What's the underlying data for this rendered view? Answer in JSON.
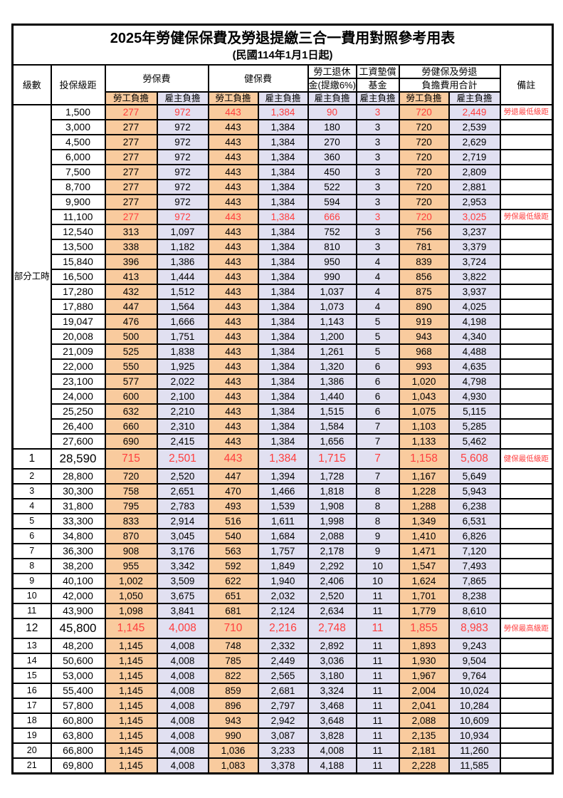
{
  "title": "2025年勞健保保費及勞退提繳三合一費用對照參考用表",
  "subtitle": "(民國114年1月1日起)",
  "colors": {
    "employee_bg": "#F9CB9E",
    "employer_bg": "#E1E0F1",
    "highlight_text": "#FF3D3D",
    "border": "#000000"
  },
  "table": {
    "header": {
      "level": "級數",
      "salary": "投保級距",
      "labor": "勞保費",
      "health": "健保費",
      "pension_line1": "勞工退休",
      "pension_line2": "金(提繳6%)",
      "fund_line1": "工資墊償",
      "fund_line2": "基金",
      "total_line1": "勞健保及勞退",
      "total_line2": "負擔費用合計",
      "remark": "備註",
      "employee": "勞工負擔",
      "employer": "雇主負擔"
    },
    "part_time_label": "部分工時",
    "part_time_rowspan": 23,
    "columns_order": [
      "labor_emp",
      "labor_er",
      "health_emp",
      "health_er",
      "pension_er",
      "fund_er",
      "total_emp",
      "total_er"
    ],
    "rows": [
      {
        "level": "",
        "salary": "1,500",
        "labor_emp": "277",
        "labor_er": "972",
        "health_emp": "443",
        "health_er": "1,384",
        "pension_er": "90",
        "fund_er": "3",
        "total_emp": "720",
        "total_er": "2,449",
        "remark": "勞退最低級距",
        "highlight": true,
        "large": false
      },
      {
        "level": "",
        "salary": "3,000",
        "labor_emp": "277",
        "labor_er": "972",
        "health_emp": "443",
        "health_er": "1,384",
        "pension_er": "180",
        "fund_er": "3",
        "total_emp": "720",
        "total_er": "2,539",
        "remark": "",
        "highlight": false,
        "large": false
      },
      {
        "level": "",
        "salary": "4,500",
        "labor_emp": "277",
        "labor_er": "972",
        "health_emp": "443",
        "health_er": "1,384",
        "pension_er": "270",
        "fund_er": "3",
        "total_emp": "720",
        "total_er": "2,629",
        "remark": "",
        "highlight": false,
        "large": false
      },
      {
        "level": "",
        "salary": "6,000",
        "labor_emp": "277",
        "labor_er": "972",
        "health_emp": "443",
        "health_er": "1,384",
        "pension_er": "360",
        "fund_er": "3",
        "total_emp": "720",
        "total_er": "2,719",
        "remark": "",
        "highlight": false,
        "large": false
      },
      {
        "level": "",
        "salary": "7,500",
        "labor_emp": "277",
        "labor_er": "972",
        "health_emp": "443",
        "health_er": "1,384",
        "pension_er": "450",
        "fund_er": "3",
        "total_emp": "720",
        "total_er": "2,809",
        "remark": "",
        "highlight": false,
        "large": false
      },
      {
        "level": "",
        "salary": "8,700",
        "labor_emp": "277",
        "labor_er": "972",
        "health_emp": "443",
        "health_er": "1,384",
        "pension_er": "522",
        "fund_er": "3",
        "total_emp": "720",
        "total_er": "2,881",
        "remark": "",
        "highlight": false,
        "large": false
      },
      {
        "level": "",
        "salary": "9,900",
        "labor_emp": "277",
        "labor_er": "972",
        "health_emp": "443",
        "health_er": "1,384",
        "pension_er": "594",
        "fund_er": "3",
        "total_emp": "720",
        "total_er": "2,953",
        "remark": "",
        "highlight": false,
        "large": false
      },
      {
        "level": "",
        "salary": "11,100",
        "labor_emp": "277",
        "labor_er": "972",
        "health_emp": "443",
        "health_er": "1,384",
        "pension_er": "666",
        "fund_er": "3",
        "total_emp": "720",
        "total_er": "3,025",
        "remark": "勞保最低級距",
        "highlight": true,
        "large": false
      },
      {
        "level": "",
        "salary": "12,540",
        "labor_emp": "313",
        "labor_er": "1,097",
        "health_emp": "443",
        "health_er": "1,384",
        "pension_er": "752",
        "fund_er": "3",
        "total_emp": "756",
        "total_er": "3,237",
        "remark": "",
        "highlight": false,
        "large": false
      },
      {
        "level": "",
        "salary": "13,500",
        "labor_emp": "338",
        "labor_er": "1,182",
        "health_emp": "443",
        "health_er": "1,384",
        "pension_er": "810",
        "fund_er": "3",
        "total_emp": "781",
        "total_er": "3,379",
        "remark": "",
        "highlight": false,
        "large": false
      },
      {
        "level": "",
        "salary": "15,840",
        "labor_emp": "396",
        "labor_er": "1,386",
        "health_emp": "443",
        "health_er": "1,384",
        "pension_er": "950",
        "fund_er": "4",
        "total_emp": "839",
        "total_er": "3,724",
        "remark": "",
        "highlight": false,
        "large": false
      },
      {
        "level": "",
        "salary": "16,500",
        "labor_emp": "413",
        "labor_er": "1,444",
        "health_emp": "443",
        "health_er": "1,384",
        "pension_er": "990",
        "fund_er": "4",
        "total_emp": "856",
        "total_er": "3,822",
        "remark": "",
        "highlight": false,
        "large": false
      },
      {
        "level": "",
        "salary": "17,280",
        "labor_emp": "432",
        "labor_er": "1,512",
        "health_emp": "443",
        "health_er": "1,384",
        "pension_er": "1,037",
        "fund_er": "4",
        "total_emp": "875",
        "total_er": "3,937",
        "remark": "",
        "highlight": false,
        "large": false
      },
      {
        "level": "",
        "salary": "17,880",
        "labor_emp": "447",
        "labor_er": "1,564",
        "health_emp": "443",
        "health_er": "1,384",
        "pension_er": "1,073",
        "fund_er": "4",
        "total_emp": "890",
        "total_er": "4,025",
        "remark": "",
        "highlight": false,
        "large": false
      },
      {
        "level": "",
        "salary": "19,047",
        "labor_emp": "476",
        "labor_er": "1,666",
        "health_emp": "443",
        "health_er": "1,384",
        "pension_er": "1,143",
        "fund_er": "5",
        "total_emp": "919",
        "total_er": "4,198",
        "remark": "",
        "highlight": false,
        "large": false
      },
      {
        "level": "",
        "salary": "20,008",
        "labor_emp": "500",
        "labor_er": "1,751",
        "health_emp": "443",
        "health_er": "1,384",
        "pension_er": "1,200",
        "fund_er": "5",
        "total_emp": "943",
        "total_er": "4,340",
        "remark": "",
        "highlight": false,
        "large": false
      },
      {
        "level": "",
        "salary": "21,009",
        "labor_emp": "525",
        "labor_er": "1,838",
        "health_emp": "443",
        "health_er": "1,384",
        "pension_er": "1,261",
        "fund_er": "5",
        "total_emp": "968",
        "total_er": "4,488",
        "remark": "",
        "highlight": false,
        "large": false
      },
      {
        "level": "",
        "salary": "22,000",
        "labor_emp": "550",
        "labor_er": "1,925",
        "health_emp": "443",
        "health_er": "1,384",
        "pension_er": "1,320",
        "fund_er": "6",
        "total_emp": "993",
        "total_er": "4,635",
        "remark": "",
        "highlight": false,
        "large": false
      },
      {
        "level": "",
        "salary": "23,100",
        "labor_emp": "577",
        "labor_er": "2,022",
        "health_emp": "443",
        "health_er": "1,384",
        "pension_er": "1,386",
        "fund_er": "6",
        "total_emp": "1,020",
        "total_er": "4,798",
        "remark": "",
        "highlight": false,
        "large": false
      },
      {
        "level": "",
        "salary": "24,000",
        "labor_emp": "600",
        "labor_er": "2,100",
        "health_emp": "443",
        "health_er": "1,384",
        "pension_er": "1,440",
        "fund_er": "6",
        "total_emp": "1,043",
        "total_er": "4,930",
        "remark": "",
        "highlight": false,
        "large": false
      },
      {
        "level": "",
        "salary": "25,250",
        "labor_emp": "632",
        "labor_er": "2,210",
        "health_emp": "443",
        "health_er": "1,384",
        "pension_er": "1,515",
        "fund_er": "6",
        "total_emp": "1,075",
        "total_er": "5,115",
        "remark": "",
        "highlight": false,
        "large": false
      },
      {
        "level": "",
        "salary": "26,400",
        "labor_emp": "660",
        "labor_er": "2,310",
        "health_emp": "443",
        "health_er": "1,384",
        "pension_er": "1,584",
        "fund_er": "7",
        "total_emp": "1,103",
        "total_er": "5,285",
        "remark": "",
        "highlight": false,
        "large": false
      },
      {
        "level": "",
        "salary": "27,600",
        "labor_emp": "690",
        "labor_er": "2,415",
        "health_emp": "443",
        "health_er": "1,384",
        "pension_er": "1,656",
        "fund_er": "7",
        "total_emp": "1,133",
        "total_er": "5,462",
        "remark": "",
        "highlight": false,
        "large": false
      },
      {
        "level": "1",
        "salary": "28,590",
        "labor_emp": "715",
        "labor_er": "2,501",
        "health_emp": "443",
        "health_er": "1,384",
        "pension_er": "1,715",
        "fund_er": "7",
        "total_emp": "1,158",
        "total_er": "5,608",
        "remark": "健保最低級距",
        "highlight": true,
        "large": true
      },
      {
        "level": "2",
        "salary": "28,800",
        "labor_emp": "720",
        "labor_er": "2,520",
        "health_emp": "447",
        "health_er": "1,394",
        "pension_er": "1,728",
        "fund_er": "7",
        "total_emp": "1,167",
        "total_er": "5,649",
        "remark": "",
        "highlight": false,
        "large": false
      },
      {
        "level": "3",
        "salary": "30,300",
        "labor_emp": "758",
        "labor_er": "2,651",
        "health_emp": "470",
        "health_er": "1,466",
        "pension_er": "1,818",
        "fund_er": "8",
        "total_emp": "1,228",
        "total_er": "5,943",
        "remark": "",
        "highlight": false,
        "large": false
      },
      {
        "level": "4",
        "salary": "31,800",
        "labor_emp": "795",
        "labor_er": "2,783",
        "health_emp": "493",
        "health_er": "1,539",
        "pension_er": "1,908",
        "fund_er": "8",
        "total_emp": "1,288",
        "total_er": "6,238",
        "remark": "",
        "highlight": false,
        "large": false
      },
      {
        "level": "5",
        "salary": "33,300",
        "labor_emp": "833",
        "labor_er": "2,914",
        "health_emp": "516",
        "health_er": "1,611",
        "pension_er": "1,998",
        "fund_er": "8",
        "total_emp": "1,349",
        "total_er": "6,531",
        "remark": "",
        "highlight": false,
        "large": false
      },
      {
        "level": "6",
        "salary": "34,800",
        "labor_emp": "870",
        "labor_er": "3,045",
        "health_emp": "540",
        "health_er": "1,684",
        "pension_er": "2,088",
        "fund_er": "9",
        "total_emp": "1,410",
        "total_er": "6,826",
        "remark": "",
        "highlight": false,
        "large": false
      },
      {
        "level": "7",
        "salary": "36,300",
        "labor_emp": "908",
        "labor_er": "3,176",
        "health_emp": "563",
        "health_er": "1,757",
        "pension_er": "2,178",
        "fund_er": "9",
        "total_emp": "1,471",
        "total_er": "7,120",
        "remark": "",
        "highlight": false,
        "large": false
      },
      {
        "level": "8",
        "salary": "38,200",
        "labor_emp": "955",
        "labor_er": "3,342",
        "health_emp": "592",
        "health_er": "1,849",
        "pension_er": "2,292",
        "fund_er": "10",
        "total_emp": "1,547",
        "total_er": "7,493",
        "remark": "",
        "highlight": false,
        "large": false
      },
      {
        "level": "9",
        "salary": "40,100",
        "labor_emp": "1,002",
        "labor_er": "3,509",
        "health_emp": "622",
        "health_er": "1,940",
        "pension_er": "2,406",
        "fund_er": "10",
        "total_emp": "1,624",
        "total_er": "7,865",
        "remark": "",
        "highlight": false,
        "large": false
      },
      {
        "level": "10",
        "salary": "42,000",
        "labor_emp": "1,050",
        "labor_er": "3,675",
        "health_emp": "651",
        "health_er": "2,032",
        "pension_er": "2,520",
        "fund_er": "11",
        "total_emp": "1,701",
        "total_er": "8,238",
        "remark": "",
        "highlight": false,
        "large": false
      },
      {
        "level": "11",
        "salary": "43,900",
        "labor_emp": "1,098",
        "labor_er": "3,841",
        "health_emp": "681",
        "health_er": "2,124",
        "pension_er": "2,634",
        "fund_er": "11",
        "total_emp": "1,779",
        "total_er": "8,610",
        "remark": "",
        "highlight": false,
        "large": false
      },
      {
        "level": "12",
        "salary": "45,800",
        "labor_emp": "1,145",
        "labor_er": "4,008",
        "health_emp": "710",
        "health_er": "2,216",
        "pension_er": "2,748",
        "fund_er": "11",
        "total_emp": "1,855",
        "total_er": "8,983",
        "remark": "勞保最高級距",
        "highlight": true,
        "large": true
      },
      {
        "level": "13",
        "salary": "48,200",
        "labor_emp": "1,145",
        "labor_er": "4,008",
        "health_emp": "748",
        "health_er": "2,332",
        "pension_er": "2,892",
        "fund_er": "11",
        "total_emp": "1,893",
        "total_er": "9,243",
        "remark": "",
        "highlight": false,
        "large": false
      },
      {
        "level": "14",
        "salary": "50,600",
        "labor_emp": "1,145",
        "labor_er": "4,008",
        "health_emp": "785",
        "health_er": "2,449",
        "pension_er": "3,036",
        "fund_er": "11",
        "total_emp": "1,930",
        "total_er": "9,504",
        "remark": "",
        "highlight": false,
        "large": false
      },
      {
        "level": "15",
        "salary": "53,000",
        "labor_emp": "1,145",
        "labor_er": "4,008",
        "health_emp": "822",
        "health_er": "2,565",
        "pension_er": "3,180",
        "fund_er": "11",
        "total_emp": "1,967",
        "total_er": "9,764",
        "remark": "",
        "highlight": false,
        "large": false
      },
      {
        "level": "16",
        "salary": "55,400",
        "labor_emp": "1,145",
        "labor_er": "4,008",
        "health_emp": "859",
        "health_er": "2,681",
        "pension_er": "3,324",
        "fund_er": "11",
        "total_emp": "2,004",
        "total_er": "10,024",
        "remark": "",
        "highlight": false,
        "large": false
      },
      {
        "level": "17",
        "salary": "57,800",
        "labor_emp": "1,145",
        "labor_er": "4,008",
        "health_emp": "896",
        "health_er": "2,797",
        "pension_er": "3,468",
        "fund_er": "11",
        "total_emp": "2,041",
        "total_er": "10,284",
        "remark": "",
        "highlight": false,
        "large": false
      },
      {
        "level": "18",
        "salary": "60,800",
        "labor_emp": "1,145",
        "labor_er": "4,008",
        "health_emp": "943",
        "health_er": "2,942",
        "pension_er": "3,648",
        "fund_er": "11",
        "total_emp": "2,088",
        "total_er": "10,609",
        "remark": "",
        "highlight": false,
        "large": false
      },
      {
        "level": "19",
        "salary": "63,800",
        "labor_emp": "1,145",
        "labor_er": "4,008",
        "health_emp": "990",
        "health_er": "3,087",
        "pension_er": "3,828",
        "fund_er": "11",
        "total_emp": "2,135",
        "total_er": "10,934",
        "remark": "",
        "highlight": false,
        "large": false
      },
      {
        "level": "20",
        "salary": "66,800",
        "labor_emp": "1,145",
        "labor_er": "4,008",
        "health_emp": "1,036",
        "health_er": "3,233",
        "pension_er": "4,008",
        "fund_er": "11",
        "total_emp": "2,181",
        "total_er": "11,260",
        "remark": "",
        "highlight": false,
        "large": false
      },
      {
        "level": "21",
        "salary": "69,800",
        "labor_emp": "1,145",
        "labor_er": "4,008",
        "health_emp": "1,083",
        "health_er": "3,378",
        "pension_er": "4,188",
        "fund_er": "11",
        "total_emp": "2,228",
        "total_er": "11,585",
        "remark": "",
        "highlight": false,
        "large": false
      }
    ]
  }
}
